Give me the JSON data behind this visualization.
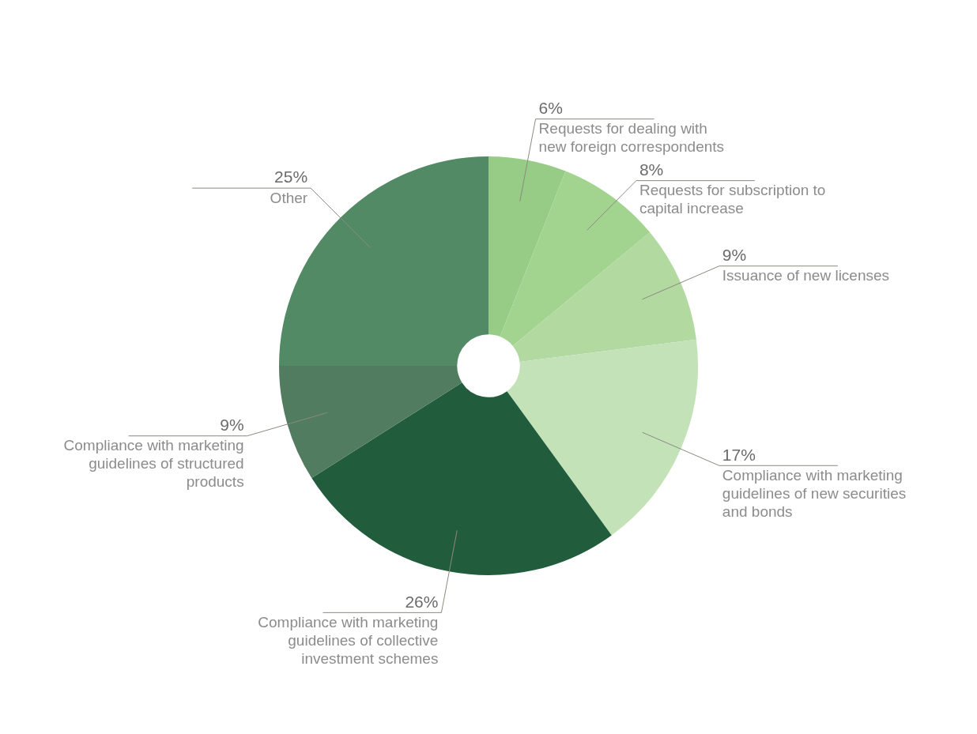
{
  "chart_data": {
    "type": "donut",
    "categories": [
      "Requests for dealing with new foreign correspondents",
      "Requests for subscription to capital increase",
      "Issuance of new licenses",
      "Compliance with marketing guidelines of new securities and bonds",
      "Compliance with marketing guidelines of collective investment schemes",
      "Compliance with marketing guidelines of structured products",
      "Other"
    ],
    "values": [
      6,
      8,
      9,
      17,
      26,
      9,
      25
    ],
    "value_labels": [
      "6%",
      "8%",
      "9%",
      "17%",
      "26%",
      "9%",
      "25%"
    ],
    "colors": [
      "#96cc85",
      "#a2d490",
      "#b2d9a0",
      "#c4e2b8",
      "#215c3c",
      "#517c5f",
      "#518a64"
    ],
    "legend": false
  }
}
